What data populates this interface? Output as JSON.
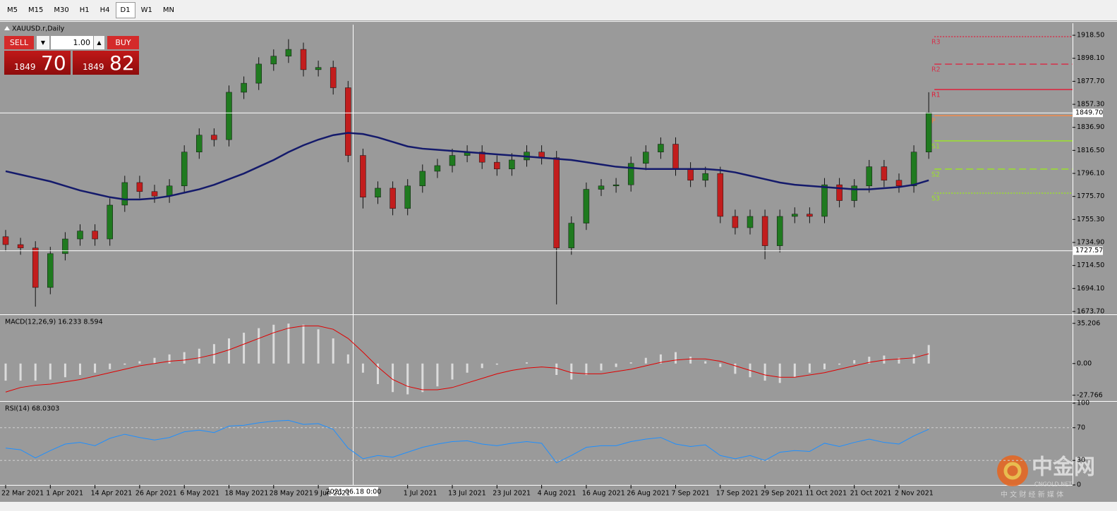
{
  "toolbar": {
    "timeframes": [
      "M5",
      "M15",
      "M30",
      "H1",
      "H4",
      "D1",
      "W1",
      "MN"
    ],
    "active_index": 5
  },
  "trade_panel": {
    "sell": "SELL",
    "buy": "BUY",
    "lot": "1.00",
    "sell_big": "1849",
    "sell_pips": "70",
    "buy_big": "1849",
    "buy_pips": "82"
  },
  "watermark": {
    "logo": "中金网",
    "site": "CNGOLD.NET",
    "slogan": "中 文 财 经 新 媒 体"
  },
  "chart_data": [
    {
      "type": "candlestick",
      "title": "XAUUSD.r,Daily",
      "crosshair_label": "2021.06.18 0:00",
      "categories": [
        "22 Mar 2021",
        null,
        null,
        "1 Apr 2021",
        null,
        null,
        "14 Apr 2021",
        null,
        null,
        "26 Apr 2021",
        null,
        null,
        "6 May 2021",
        null,
        null,
        "18 May 2021",
        null,
        null,
        "28 May 2021",
        null,
        null,
        "9 Jun 2021",
        null,
        null,
        null,
        null,
        null,
        "1 Jul 2021",
        null,
        null,
        "13 Jul 2021",
        null,
        null,
        "23 Jul 2021",
        null,
        null,
        "4 Aug 2021",
        null,
        null,
        "16 Aug 2021",
        null,
        null,
        "26 Aug 2021",
        null,
        null,
        "7 Sep 2021",
        null,
        null,
        "17 Sep 2021",
        null,
        null,
        "29 Sep 2021",
        null,
        null,
        "11 Oct 2021",
        null,
        null,
        "21 Oct 2021",
        null,
        null,
        "2 Nov 2021",
        null,
        null
      ],
      "open": [
        1740,
        1733,
        1730,
        1695,
        1725,
        1738,
        1745,
        1738,
        1768,
        1788,
        1780,
        1776,
        1785,
        1815,
        1830,
        1826,
        1868,
        1876,
        1893,
        1900,
        1906,
        1888,
        1890,
        1872,
        1812,
        1775,
        1783,
        1765,
        1785,
        1798,
        1803,
        1812,
        1815,
        1806,
        1800,
        1808,
        1815,
        1810,
        1730,
        1752,
        1782,
        1785,
        1786,
        1805,
        1815,
        1822,
        1800,
        1790,
        1796,
        1758,
        1748,
        1758,
        1732,
        1758,
        1760,
        1758,
        1786,
        1772,
        1785,
        1802,
        1790,
        1785,
        1815
      ],
      "high": [
        1746,
        1739,
        1736,
        1731,
        1744,
        1751,
        1751,
        1774,
        1794,
        1794,
        1786,
        1791,
        1821,
        1836,
        1836,
        1874,
        1882,
        1899,
        1906,
        1915,
        1912,
        1896,
        1896,
        1878,
        1818,
        1789,
        1789,
        1791,
        1804,
        1809,
        1818,
        1821,
        1821,
        1812,
        1814,
        1821,
        1821,
        1816,
        1758,
        1788,
        1791,
        1792,
        1811,
        1821,
        1828,
        1828,
        1806,
        1802,
        1802,
        1764,
        1764,
        1764,
        1764,
        1766,
        1766,
        1792,
        1792,
        1791,
        1808,
        1808,
        1796,
        1821,
        1868
      ],
      "low": [
        1727,
        1724,
        1678,
        1689,
        1719,
        1732,
        1732,
        1732,
        1762,
        1774,
        1770,
        1770,
        1779,
        1809,
        1820,
        1820,
        1862,
        1870,
        1887,
        1894,
        1882,
        1882,
        1866,
        1806,
        1765,
        1769,
        1759,
        1759,
        1779,
        1792,
        1797,
        1806,
        1800,
        1794,
        1794,
        1802,
        1804,
        1680,
        1724,
        1746,
        1776,
        1779,
        1780,
        1799,
        1809,
        1794,
        1784,
        1784,
        1752,
        1742,
        1742,
        1720,
        1726,
        1752,
        1752,
        1752,
        1766,
        1766,
        1779,
        1784,
        1779,
        1779,
        1809
      ],
      "close": [
        1733,
        1730,
        1695,
        1725,
        1738,
        1745,
        1738,
        1768,
        1788,
        1780,
        1776,
        1785,
        1815,
        1830,
        1826,
        1868,
        1876,
        1893,
        1900,
        1906,
        1888,
        1890,
        1872,
        1812,
        1775,
        1783,
        1765,
        1785,
        1798,
        1803,
        1812,
        1815,
        1806,
        1800,
        1808,
        1815,
        1810,
        1730,
        1752,
        1782,
        1785,
        1786,
        1805,
        1815,
        1822,
        1800,
        1790,
        1796,
        1758,
        1748,
        1758,
        1732,
        1758,
        1760,
        1758,
        1786,
        1772,
        1785,
        1802,
        1790,
        1785,
        1815,
        1850
      ],
      "bull_color": "#1f7a1f",
      "bear_color": "#c21d1d",
      "ma": {
        "color": "#141a6b",
        "values": [
          1798,
          1795,
          1792,
          1789,
          1785,
          1781,
          1778,
          1775,
          1773,
          1773,
          1774,
          1776,
          1779,
          1782,
          1786,
          1791,
          1796,
          1802,
          1808,
          1815,
          1821,
          1826,
          1830,
          1832,
          1831,
          1828,
          1824,
          1820,
          1818,
          1817,
          1816,
          1815,
          1814,
          1813,
          1812,
          1811,
          1810,
          1809,
          1808,
          1806,
          1804,
          1802,
          1801,
          1800,
          1800,
          1800,
          1800,
          1800,
          1799,
          1797,
          1794,
          1791,
          1788,
          1786,
          1785,
          1784,
          1783,
          1782,
          1782,
          1783,
          1784,
          1786,
          1790
        ]
      },
      "pivots": [
        {
          "name": "R3",
          "value": 1917.3,
          "color": "#d6304a",
          "style": "dotted"
        },
        {
          "name": "R2",
          "value": 1892.9,
          "color": "#d6304a",
          "style": "dashed"
        },
        {
          "name": "R1",
          "value": 1870.4,
          "color": "#e0203a",
          "style": "solid"
        },
        {
          "name": "P",
          "value": 1847.3,
          "color": "#f08a4b",
          "style": "solid"
        },
        {
          "name": "S1",
          "value": 1824.9,
          "color": "#9be22a",
          "style": "solid"
        },
        {
          "name": "S2",
          "value": 1799.9,
          "color": "#9be22a",
          "style": "dashed"
        },
        {
          "name": "S3",
          "value": 1778.6,
          "color": "#9be22a",
          "style": "dotted"
        }
      ],
      "price_lines": [
        {
          "value": 1849.7,
          "label": "1849.70"
        },
        {
          "value": 1727.57,
          "label": "1727.57"
        }
      ],
      "ylim": [
        1671.8,
        1927.9
      ],
      "yticks": [
        {
          "value": 1918.5,
          "label": "1918.50"
        },
        {
          "value": 1898.1,
          "label": "1898.10"
        },
        {
          "value": 1877.7,
          "label": "1877.70"
        },
        {
          "value": 1857.3,
          "label": "1857.30"
        },
        {
          "value": 1836.9,
          "label": "1836.90"
        },
        {
          "value": 1816.5,
          "label": "1816.50"
        },
        {
          "value": 1796.1,
          "label": "1796.10"
        },
        {
          "value": 1775.7,
          "label": "1775.70"
        },
        {
          "value": 1755.3,
          "label": "1755.30"
        },
        {
          "value": 1734.9,
          "label": "1734.90"
        },
        {
          "value": 1714.5,
          "label": "1714.50"
        },
        {
          "value": 1694.1,
          "label": "1694.10"
        },
        {
          "value": 1673.7,
          "label": "1673.70"
        }
      ]
    },
    {
      "type": "macd",
      "title": "MACD(12,26,9) 16.233 8.594",
      "bar_color": "#dcdcdc",
      "signal_color": "#e00000",
      "values": [
        -15,
        -15,
        -15,
        -14,
        -12,
        -10,
        -8,
        -5,
        -1,
        2,
        5,
        8,
        10,
        13,
        17,
        22,
        27,
        31,
        34,
        35,
        34,
        30,
        22,
        8,
        -8,
        -18,
        -25,
        -27,
        -25,
        -20,
        -14,
        -8,
        -4,
        -1,
        0,
        1,
        0,
        -10,
        -14,
        -10,
        -6,
        -3,
        1,
        5,
        8,
        10,
        6,
        2,
        -3,
        -9,
        -12,
        -15,
        -17,
        -12,
        -8,
        -5,
        -1,
        3,
        6,
        7,
        5,
        8,
        16.233
      ],
      "signal": [
        -25,
        -21,
        -19,
        -18,
        -16,
        -14,
        -11,
        -8,
        -5,
        -2,
        0,
        2,
        3,
        5,
        8,
        12,
        17,
        22,
        27,
        31,
        33,
        33,
        30,
        22,
        10,
        -3,
        -14,
        -20,
        -23,
        -23,
        -21,
        -17,
        -13,
        -9,
        -6,
        -4,
        -3,
        -4,
        -8,
        -9,
        -9,
        -7,
        -5,
        -2,
        1,
        3,
        4,
        4,
        2,
        -2,
        -6,
        -10,
        -12,
        -12,
        -10,
        -8,
        -5,
        -2,
        1,
        3,
        4,
        5,
        8.594
      ],
      "ylim": [
        -31,
        40
      ],
      "yticks": [
        35.206,
        {
          "value": 0,
          "label": "0.00"
        },
        -27.766
      ]
    },
    {
      "type": "line",
      "title": "RSI(14) 68.0303",
      "color": "#1e8fff",
      "values": [
        45,
        43,
        33,
        42,
        50,
        52,
        48,
        57,
        62,
        58,
        55,
        58,
        65,
        67,
        64,
        72,
        73,
        76,
        78,
        79,
        74,
        75,
        68,
        45,
        32,
        36,
        34,
        40,
        46,
        50,
        53,
        54,
        50,
        48,
        51,
        53,
        51,
        27,
        36,
        46,
        48,
        48,
        53,
        56,
        58,
        50,
        47,
        49,
        36,
        32,
        36,
        30,
        40,
        42,
        41,
        51,
        47,
        52,
        56,
        52,
        50,
        60,
        68.0303
      ],
      "levels": [
        70,
        30
      ],
      "ylim": [
        0,
        100
      ],
      "yticks": [
        100,
        70,
        30,
        0
      ]
    }
  ]
}
